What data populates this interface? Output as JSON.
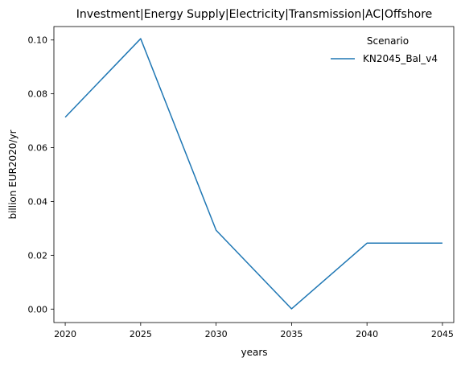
{
  "chart_data": {
    "type": "line",
    "title": "Investment|Energy Supply|Electricity|Transmission|AC|Offshore",
    "xlabel": "years",
    "ylabel": "billion EUR2020/yr",
    "x": [
      2020,
      2025,
      2030,
      2035,
      2040,
      2045
    ],
    "xticks": [
      "2020",
      "2025",
      "2030",
      "2035",
      "2040",
      "2045"
    ],
    "yticks": [
      "0.00",
      "0.02",
      "0.04",
      "0.06",
      "0.08",
      "0.10"
    ],
    "xlim": [
      2019.25,
      2045.75
    ],
    "ylim": [
      -0.005,
      0.105
    ],
    "grid": false,
    "legend": {
      "title": "Scenario",
      "placement": "top-right"
    },
    "series": [
      {
        "name": "KN2045_Bal_v4",
        "color": "#1f77b4",
        "values": [
          0.0713,
          0.1005,
          0.0293,
          0.0001,
          0.0245,
          0.0245
        ]
      }
    ]
  }
}
